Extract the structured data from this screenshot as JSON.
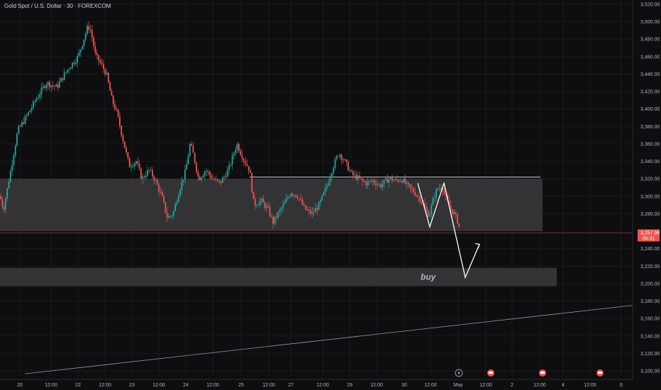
{
  "header": {
    "title": "Gold Spot / U.S. Dollar · 30 · FOREXCOM"
  },
  "colors": {
    "background": "#0e0e10",
    "up": "#26a69a",
    "down": "#ef5350",
    "zone": "#3a3a3d",
    "grid": "#1a1a1d",
    "axis_text": "#b2b5be",
    "price_line": "#ef5350"
  },
  "annotation": {
    "buy_label": "buy"
  },
  "current_price": {
    "price": "3,257.96",
    "countdown": "06:31",
    "value": 3257.96
  },
  "event_icons": [
    "lightning-icon",
    "flag-icon",
    "flag-icon",
    "flag-icon"
  ],
  "chart_data": {
    "type": "candlestick",
    "title": "Gold Spot / U.S. Dollar · 30 · FOREXCOM",
    "ylim": [
      3100,
      3520
    ],
    "y_ticks": [
      3520,
      3500,
      3480,
      3460,
      3440,
      3420,
      3400,
      3380,
      3360,
      3340,
      3320,
      3300,
      3280,
      3240,
      3220,
      3200,
      3180,
      3160,
      3140,
      3120,
      3100
    ],
    "y_tick_labels": [
      "3,520.00",
      "3,500.00",
      "3,480.00",
      "3,460.00",
      "3,440.00",
      "3,420.00",
      "3,400.00",
      "3,380.00",
      "3,360.00",
      "3,340.00",
      "3,320.00",
      "3,300.00",
      "3,280.00",
      "3,240.00",
      "3,220.00",
      "3,200.00",
      "3,180.00",
      "3,160.00",
      "3,140.00",
      "3,120.00",
      "3,100.00"
    ],
    "x_tick_labels": [
      "20",
      "12:00",
      "22",
      "12:00",
      "23",
      "12:00",
      "24",
      "12:00",
      "25",
      "12:00",
      "27",
      "12:00",
      "29",
      "12:00",
      "30",
      "12:00",
      "May",
      "12:00",
      "2",
      "12:00",
      "4",
      "12:00",
      "6"
    ],
    "anchors": [
      [
        0,
        3300
      ],
      [
        5,
        3285
      ],
      [
        14,
        3325
      ],
      [
        25,
        3375
      ],
      [
        40,
        3395
      ],
      [
        50,
        3410
      ],
      [
        65,
        3430
      ],
      [
        80,
        3425
      ],
      [
        95,
        3445
      ],
      [
        110,
        3460
      ],
      [
        118,
        3480
      ],
      [
        124,
        3495
      ],
      [
        128,
        3490
      ],
      [
        135,
        3460
      ],
      [
        140,
        3455
      ],
      [
        150,
        3440
      ],
      [
        158,
        3410
      ],
      [
        165,
        3395
      ],
      [
        172,
        3370
      ],
      [
        182,
        3335
      ],
      [
        192,
        3340
      ],
      [
        200,
        3320
      ],
      [
        210,
        3330
      ],
      [
        218,
        3320
      ],
      [
        228,
        3300
      ],
      [
        236,
        3275
      ],
      [
        244,
        3280
      ],
      [
        252,
        3305
      ],
      [
        262,
        3330
      ],
      [
        268,
        3360
      ],
      [
        272,
        3350
      ],
      [
        280,
        3320
      ],
      [
        290,
        3330
      ],
      [
        300,
        3320
      ],
      [
        310,
        3315
      ],
      [
        322,
        3330
      ],
      [
        334,
        3360
      ],
      [
        342,
        3345
      ],
      [
        352,
        3330
      ],
      [
        358,
        3290
      ],
      [
        368,
        3295
      ],
      [
        378,
        3285
      ],
      [
        385,
        3270
      ],
      [
        392,
        3280
      ],
      [
        400,
        3290
      ],
      [
        410,
        3305
      ],
      [
        420,
        3300
      ],
      [
        430,
        3285
      ],
      [
        440,
        3280
      ],
      [
        450,
        3290
      ],
      [
        460,
        3310
      ],
      [
        470,
        3335
      ],
      [
        478,
        3350
      ],
      [
        486,
        3340
      ],
      [
        496,
        3325
      ],
      [
        506,
        3320
      ],
      [
        516,
        3315
      ],
      [
        526,
        3318
      ],
      [
        536,
        3312
      ],
      [
        548,
        3320
      ],
      [
        558,
        3318
      ],
      [
        566,
        3320
      ],
      [
        574,
        3312
      ],
      [
        584,
        3305
      ],
      [
        594,
        3295
      ],
      [
        600,
        3285
      ],
      [
        605,
        3278
      ],
      [
        612,
        3300
      ],
      [
        618,
        3310
      ],
      [
        624,
        3310
      ],
      [
        630,
        3295
      ],
      [
        636,
        3285
      ],
      [
        642,
        3278
      ],
      [
        647,
        3268
      ],
      [
        648,
        3258
      ]
    ],
    "resistance_line": {
      "from_x_label": "25",
      "price": 3322
    },
    "zones": [
      {
        "name": "range-zone",
        "top": 3320,
        "bottom": 3260
      },
      {
        "name": "buy-zone",
        "top": 3218,
        "bottom": 3197,
        "label": "buy"
      }
    ],
    "projection_path": [
      [
        3315
      ],
      [
        3265
      ],
      [
        3315
      ],
      [
        3207
      ],
      [
        3245
      ]
    ],
    "trendline": {
      "start_price": 3095,
      "end_price": 3175
    }
  }
}
